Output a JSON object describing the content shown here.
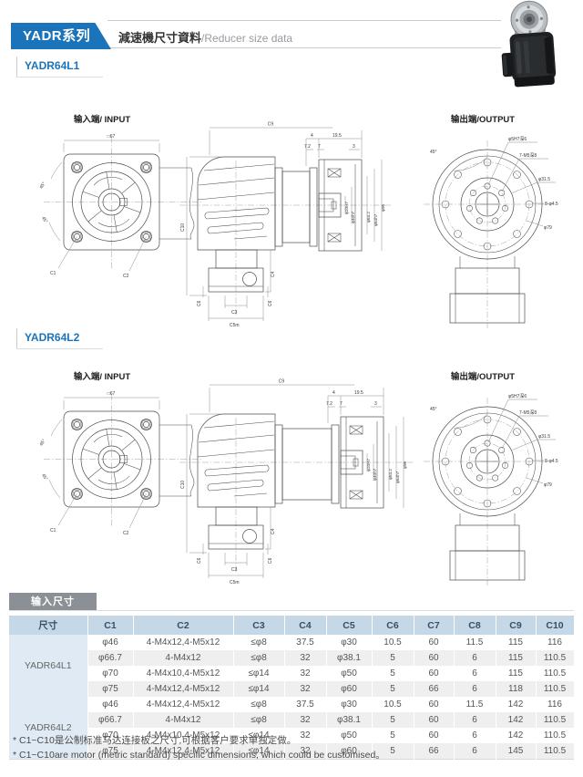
{
  "header": {
    "series_tab": "YADR系列",
    "subtitle_zh": "減速機尺寸資料",
    "subtitle_en": "/Reducer size data"
  },
  "section1": {
    "title": "YADR64L1"
  },
  "section2": {
    "title": "YADR64L2"
  },
  "drawing": {
    "input_title": "输入端/ INPUT",
    "output_title": "输出端/OUTPUT",
    "square_dim": "□67",
    "angle": "45°",
    "c1": "C1",
    "c2": "C2",
    "c3": "C3",
    "c4": "C4",
    "c5m": "C5m",
    "c6": "C6",
    "c9": "C9",
    "c10": "C10",
    "d4": "4",
    "d19_5": "19.5",
    "d7_2": "7.2",
    "d7": "7",
    "d3": "3",
    "dia1": "φ20H7",
    "dia2": "φ40h7",
    "dia3": "φ63.2",
    "dia4": "φ64h7",
    "dia5": "φ96",
    "out_pin": "φ5H7深6",
    "out_tap": "7-M5深8",
    "out_d315": "φ31.5",
    "out_holes": "8-φ4.5",
    "out_d79": "φ79"
  },
  "table": {
    "tab_label": "输入尺寸",
    "col_headers": [
      "尺寸",
      "C1",
      "C2",
      "C3",
      "C4",
      "C5",
      "C6",
      "C7",
      "C8",
      "C9",
      "C10"
    ],
    "groups": [
      {
        "name": "YADR64L1",
        "rows": [
          [
            "φ46",
            "4-M4x12,4-M5x12",
            "≤φ8",
            "37.5",
            "φ30",
            "10.5",
            "60",
            "11.5",
            "115",
            "116"
          ],
          [
            "φ66.7",
            "4-M4x12",
            "≤φ8",
            "32",
            "φ38.1",
            "5",
            "60",
            "6",
            "115",
            "110.5"
          ],
          [
            "φ70",
            "4-M4x10,4-M5x12",
            "≤φ14",
            "32",
            "φ50",
            "5",
            "60",
            "6",
            "115",
            "110.5"
          ],
          [
            "φ75",
            "4-M4x12,4-M5x12",
            "≤φ14",
            "32",
            "φ60",
            "5",
            "66",
            "6",
            "118",
            "110.5"
          ]
        ]
      },
      {
        "name": "YADR64L2",
        "rows": [
          [
            "φ46",
            "4-M4x12,4-M5x12",
            "≤φ8",
            "37.5",
            "φ30",
            "10.5",
            "60",
            "11.5",
            "142",
            "116"
          ],
          [
            "φ66.7",
            "4-M4x12",
            "≤φ8",
            "32",
            "φ38.1",
            "5",
            "60",
            "6",
            "142",
            "110.5"
          ],
          [
            "φ70",
            "4-M4x10,4-M5x12",
            "≤φ14",
            "32",
            "φ50",
            "5",
            "60",
            "6",
            "142",
            "110.5"
          ],
          [
            "φ75",
            "4-M4x12,4-M5x12",
            "≤φ14",
            "32",
            "φ60",
            "5",
            "66",
            "6",
            "145",
            "110.5"
          ]
        ]
      }
    ]
  },
  "notes": [
    "* C1~C10是公制标准马达连接板之尺寸,可根据客户要求单独定做。",
    "* C1~C10are motor (metric standard) specific dimensions, which could be customised。"
  ]
}
